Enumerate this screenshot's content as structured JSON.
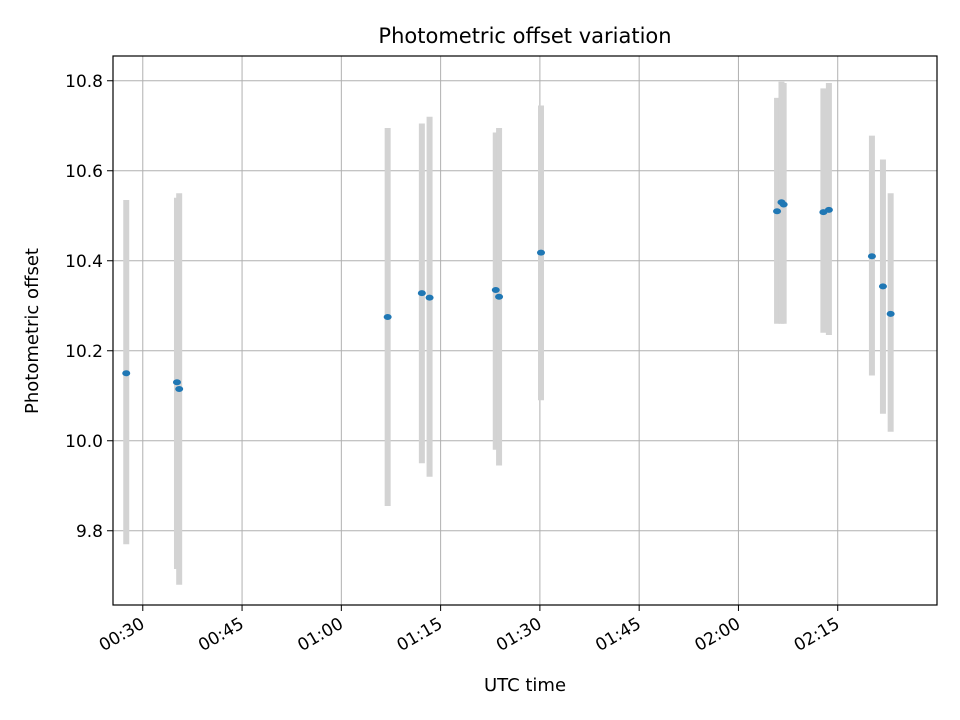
{
  "chart_data": {
    "type": "scatter",
    "title": "Photometric offset variation",
    "xlabel": "UTC time",
    "ylabel": "Photometric offset",
    "xlim": [
      "00:25:30",
      "02:30:00"
    ],
    "ylim": [
      9.635,
      10.855
    ],
    "x_ticks": [
      "00:30",
      "00:45",
      "01:00",
      "01:15",
      "01:30",
      "01:45",
      "02:00",
      "02:15"
    ],
    "y_ticks": [
      "9.8",
      "10.0",
      "10.2",
      "10.4",
      "10.6",
      "10.8"
    ],
    "grid": true,
    "series": [
      {
        "marker_color": "#1f77b4",
        "errorbar_color": "#d3d3d3",
        "points": [
          {
            "x": "00:27:30",
            "y": 10.15,
            "err_low": 9.77,
            "err_high": 10.535
          },
          {
            "x": "00:35:10",
            "y": 10.13,
            "err_low": 9.715,
            "err_high": 10.54
          },
          {
            "x": "00:35:30",
            "y": 10.115,
            "err_low": 9.68,
            "err_high": 10.55
          },
          {
            "x": "01:07:00",
            "y": 10.275,
            "err_low": 9.855,
            "err_high": 10.695
          },
          {
            "x": "01:12:10",
            "y": 10.328,
            "err_low": 9.95,
            "err_high": 10.705
          },
          {
            "x": "01:13:20",
            "y": 10.318,
            "err_low": 9.92,
            "err_high": 10.72
          },
          {
            "x": "01:23:20",
            "y": 10.335,
            "err_low": 9.98,
            "err_high": 10.685
          },
          {
            "x": "01:23:50",
            "y": 10.32,
            "err_low": 9.945,
            "err_high": 10.695
          },
          {
            "x": "01:30:10",
            "y": 10.418,
            "err_low": 10.09,
            "err_high": 10.745
          },
          {
            "x": "02:05:50",
            "y": 10.51,
            "err_low": 10.26,
            "err_high": 10.762
          },
          {
            "x": "02:06:30",
            "y": 10.53,
            "err_low": 10.26,
            "err_high": 10.798
          },
          {
            "x": "02:06:50",
            "y": 10.525,
            "err_low": 10.26,
            "err_high": 10.795
          },
          {
            "x": "02:12:50",
            "y": 10.508,
            "err_low": 10.24,
            "err_high": 10.783
          },
          {
            "x": "02:13:40",
            "y": 10.513,
            "err_low": 10.235,
            "err_high": 10.795
          },
          {
            "x": "02:20:10",
            "y": 10.41,
            "err_low": 10.145,
            "err_high": 10.678
          },
          {
            "x": "02:21:50",
            "y": 10.343,
            "err_low": 10.06,
            "err_high": 10.625
          },
          {
            "x": "02:23:00",
            "y": 10.282,
            "err_low": 10.02,
            "err_high": 10.55
          }
        ]
      }
    ]
  }
}
